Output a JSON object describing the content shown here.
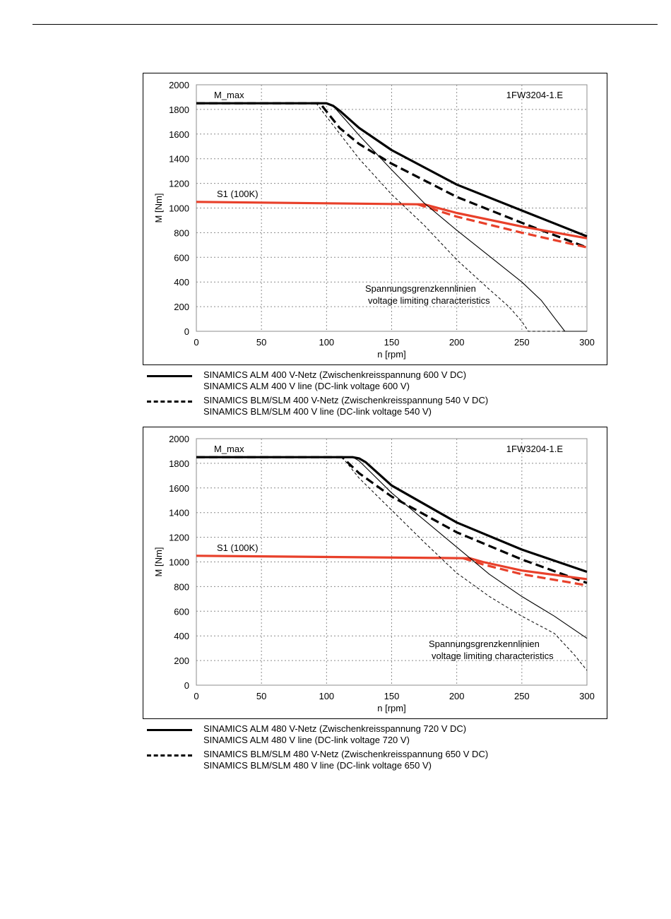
{
  "chart_data": [
    {
      "type": "line",
      "title": "1FW3204-1.E",
      "xlabel": "n [rpm]",
      "ylabel": "M [Nm]",
      "xlim": [
        0,
        300
      ],
      "ylim": [
        0,
        2000
      ],
      "xticks": [
        0,
        50,
        100,
        150,
        200,
        250,
        300
      ],
      "yticks": [
        0,
        200,
        400,
        600,
        800,
        1000,
        1200,
        1400,
        1600,
        1800,
        2000
      ],
      "grid": true,
      "annotations": [
        "M_max",
        "S1 (100K)",
        "Spannungsgrenzkennlinien",
        "voltage limiting characteristics"
      ],
      "series": [
        {
          "style": "solid-bold-black",
          "x": [
            0,
            100,
            105,
            110,
            125,
            150,
            200,
            250,
            300
          ],
          "y": [
            1850,
            1850,
            1830,
            1790,
            1650,
            1470,
            1190,
            980,
            770
          ]
        },
        {
          "style": "dashed-bold-black",
          "x": [
            0,
            95,
            110,
            125,
            150,
            200,
            250,
            300
          ],
          "y": [
            1850,
            1850,
            1650,
            1520,
            1360,
            1090,
            880,
            680
          ]
        },
        {
          "style": "solid-bold-red",
          "x": [
            0,
            175,
            200,
            250,
            300
          ],
          "y": [
            1050,
            1030,
            960,
            850,
            755
          ]
        },
        {
          "style": "dashed-bold-red",
          "x": [
            170,
            200,
            250,
            300
          ],
          "y": [
            1030,
            930,
            800,
            680
          ]
        },
        {
          "style": "solid-thin-black",
          "x": [
            100,
            105,
            125,
            150,
            175,
            200,
            225,
            250,
            265,
            275,
            283,
            300
          ],
          "y": [
            1850,
            1830,
            1590,
            1310,
            1040,
            820,
            610,
            400,
            250,
            110,
            0,
            0
          ]
        },
        {
          "style": "dashed-thin-black",
          "x": [
            92,
            125,
            150,
            175,
            200,
            225,
            240,
            250,
            255,
            300
          ],
          "y": [
            1850,
            1400,
            1110,
            860,
            580,
            340,
            200,
            80,
            0,
            0
          ]
        }
      ],
      "legend": [
        {
          "style": "solid",
          "lines": [
            "SINAMICS ALM  400 V-Netz (Zwischenkreisspannung 600 V DC)",
            "SINAMICS ALM  400 V line (DC-link voltage 600 V)"
          ]
        },
        {
          "style": "dashed",
          "lines": [
            "SINAMICS BLM/SLM  400 V-Netz (Zwischenkreisspannung 540 V DC)",
            "SINAMICS BLM/SLM  400 V line (DC-link voltage 540 V)"
          ]
        }
      ]
    },
    {
      "type": "line",
      "title": "1FW3204-1.E",
      "xlabel": "n [rpm]",
      "ylabel": "M [Nm]",
      "xlim": [
        0,
        300
      ],
      "ylim": [
        0,
        2000
      ],
      "xticks": [
        0,
        50,
        100,
        150,
        200,
        250,
        300
      ],
      "yticks": [
        0,
        200,
        400,
        600,
        800,
        1000,
        1200,
        1400,
        1600,
        1800,
        2000
      ],
      "grid": true,
      "annotations": [
        "M_max",
        "S1 (100K)",
        "Spannungsgrenzkennlinien",
        "voltage limiting characteristics"
      ],
      "series": [
        {
          "style": "solid-bold-black",
          "x": [
            0,
            120,
            125,
            130,
            150,
            200,
            250,
            300
          ],
          "y": [
            1850,
            1850,
            1840,
            1810,
            1620,
            1320,
            1100,
            920
          ]
        },
        {
          "style": "dashed-bold-black",
          "x": [
            0,
            112,
            125,
            150,
            200,
            250,
            300
          ],
          "y": [
            1850,
            1850,
            1720,
            1530,
            1240,
            1020,
            830
          ]
        },
        {
          "style": "solid-bold-red",
          "x": [
            0,
            210,
            220,
            250,
            300
          ],
          "y": [
            1050,
            1030,
            1000,
            930,
            860
          ]
        },
        {
          "style": "dashed-bold-red",
          "x": [
            205,
            220,
            250,
            300
          ],
          "y": [
            1030,
            980,
            900,
            810
          ]
        },
        {
          "style": "solid-thin-black",
          "x": [
            120,
            125,
            150,
            175,
            200,
            225,
            250,
            275,
            300
          ],
          "y": [
            1850,
            1820,
            1560,
            1340,
            1120,
            900,
            720,
            560,
            380
          ]
        },
        {
          "style": "dashed-thin-black",
          "x": [
            112,
            125,
            150,
            175,
            200,
            225,
            250,
            275,
            290,
            300
          ],
          "y": [
            1850,
            1680,
            1420,
            1160,
            910,
            720,
            560,
            420,
            250,
            120
          ]
        }
      ],
      "legend": [
        {
          "style": "solid",
          "lines": [
            "SINAMICS ALM  480 V-Netz (Zwischenkreisspannung 720 V DC)",
            "SINAMICS ALM  480 V line (DC-link voltage 720 V)"
          ]
        },
        {
          "style": "dashed",
          "lines": [
            "SINAMICS BLM/SLM  480 V-Netz (Zwischenkreisspannung 650 V DC)",
            "SINAMICS BLM/SLM  480 V line (DC-link voltage 650 V)"
          ]
        }
      ]
    }
  ]
}
